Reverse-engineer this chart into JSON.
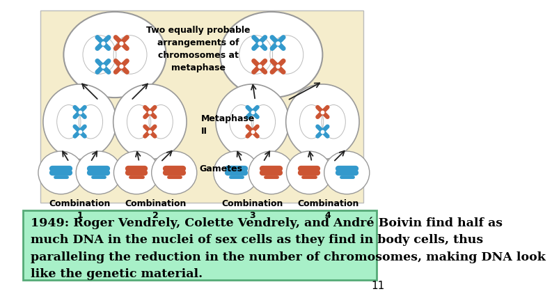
{
  "slide_bg": "#ffffff",
  "diagram_bg": "#f5edcc",
  "text_box_bg": "#a8f0c8",
  "text_box_border": "#5aaa7a",
  "main_text": "1949: Roger Vendrely, Colette Vendrely, and André Boivin find half as\nmuch DNA in the nuclei of sex cells as they find in body cells, thus\nparalleling the reduction in the number of chromosomes, making DNA look\nlike the genetic material.",
  "page_number": "11",
  "text_fontsize": 12.5,
  "page_fontsize": 11,
  "text_color": "#000000",
  "diagram_label_top": "Two equally probable\narrangements of\nchromosomes at\nmetaphase",
  "diagram_label_mid": "Metaphase\nII",
  "diagram_label_bot": "Gametes",
  "combo_labels": [
    "Combination\n1",
    "Combination\n2",
    "Combination\n3",
    "Combination\n4"
  ],
  "blue_color": "#3399cc",
  "orange_color": "#cc5533",
  "arrow_color": "#222222"
}
